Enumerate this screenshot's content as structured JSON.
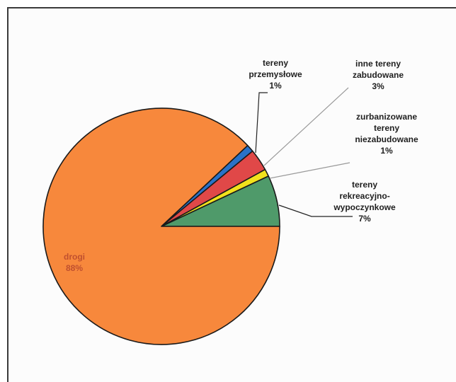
{
  "chart_data": {
    "type": "pie",
    "title": "",
    "start_angle_deg": 0,
    "direction": "counterclockwise",
    "slices": [
      {
        "name": "tereny rekreacyjno-wypoczynkowe",
        "label_lines": [
          "tereny",
          "rekreacyjno-",
          "wypoczynkowe"
        ],
        "value_label": "7%",
        "value": 7,
        "color": "#4f9a6a"
      },
      {
        "name": "zurbanizowane tereny niezabudowane",
        "label_lines": [
          "zurbanizowane",
          "tereny",
          "niezabudowane"
        ],
        "value_label": "1%",
        "value": 1,
        "color": "#f2e21c"
      },
      {
        "name": "inne tereny zabudowane",
        "label_lines": [
          "inne tereny",
          "zabudowane"
        ],
        "value_label": "3%",
        "value": 3,
        "color": "#e04848"
      },
      {
        "name": "tereny przemysłowe",
        "label_lines": [
          "tereny",
          "przemysłowe"
        ],
        "value_label": "1%",
        "value": 1,
        "color": "#2a72c8"
      },
      {
        "name": "drogi",
        "label_lines": [
          "drogi"
        ],
        "value_label": "88%",
        "value": 88,
        "color": "#f7883c"
      }
    ],
    "legend": "none",
    "label_placement": "outside with leader lines; 'drogi' inside"
  }
}
